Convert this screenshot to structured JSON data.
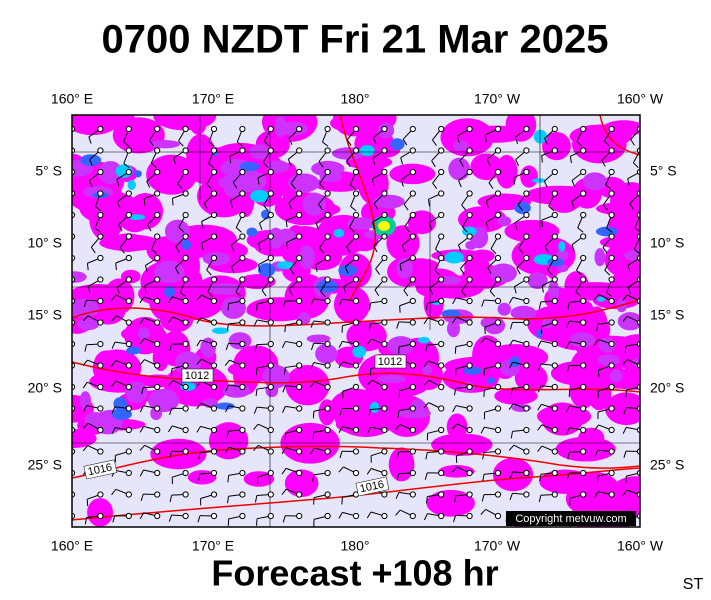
{
  "title": "0700 NZDT Fri 21 Mar 2025",
  "longitude_labels": [
    "160° E",
    "170° E",
    "180°",
    "170° W",
    "160° W"
  ],
  "latitude_labels": [
    "5° S",
    "10° S",
    "15° S",
    "20° S",
    "25° S"
  ],
  "isobar_labels": [
    "1012",
    "1012",
    "1016",
    "1016"
  ],
  "copyright": "Copyright metvuw.com",
  "footer": "Forecast +108 hr",
  "corner_label": "ST"
}
